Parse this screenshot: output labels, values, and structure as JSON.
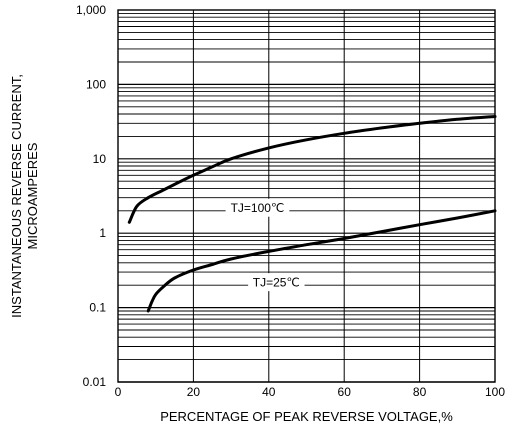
{
  "chart_data": {
    "type": "line",
    "xlabel": "PERCENTAGE OF PEAK REVERSE VOLTAGE,%",
    "ylabel_lines": [
      "INSTANTANEOUS REVERSE CURRENT,",
      "MICROAMPERES"
    ],
    "xlim": [
      0,
      100
    ],
    "ylim": [
      0.01,
      1000
    ],
    "yscale": "log",
    "x_ticks": [
      0,
      20,
      40,
      60,
      80,
      100
    ],
    "x_tick_labels": [
      "0",
      "20",
      "40",
      "60",
      "80",
      "100"
    ],
    "y_ticks": [
      0.01,
      0.1,
      1,
      10,
      100,
      1000
    ],
    "y_tick_labels": [
      "0.01",
      "0.1",
      "1",
      "10",
      "100",
      "1,000"
    ],
    "grid": true,
    "legend": "none",
    "series": [
      {
        "name": "TJ=100℃",
        "x": [
          3,
          5,
          8,
          12,
          16,
          20,
          25,
          30,
          40,
          50,
          60,
          70,
          80,
          90,
          100
        ],
        "y": [
          1.4,
          2.3,
          3.0,
          3.8,
          4.8,
          6.0,
          7.8,
          10,
          14,
          18,
          22,
          26,
          30,
          34,
          37
        ]
      },
      {
        "name": "TJ=25℃",
        "x": [
          8,
          9,
          10,
          12,
          15,
          20,
          25,
          30,
          40,
          50,
          60,
          70,
          80,
          90,
          100
        ],
        "y": [
          0.09,
          0.12,
          0.15,
          0.19,
          0.25,
          0.32,
          0.38,
          0.45,
          0.57,
          0.7,
          0.85,
          1.05,
          1.3,
          1.6,
          2.0
        ]
      }
    ],
    "annotations": [
      {
        "text": "TJ=100℃",
        "x": 37,
        "y": 2.2
      },
      {
        "text": "TJ=25℃",
        "x": 42,
        "y": 0.22
      }
    ]
  }
}
